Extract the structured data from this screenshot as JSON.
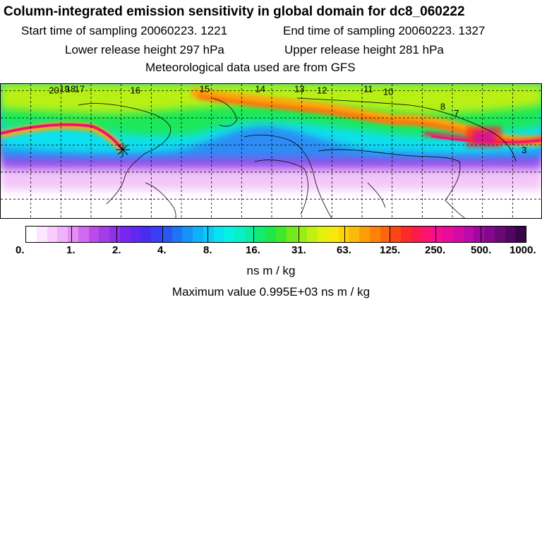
{
  "header": {
    "title": "Column-integrated emission sensitivity in global domain for dc8_060222",
    "start_sampling": "Start time of sampling 20060223.  1221",
    "end_sampling": "End time of sampling 20060223.  1327",
    "lower_release": "Lower release height  297 hPa",
    "upper_release": "Upper release height  281 hPa",
    "met_data": "Meteorological data used are from GFS"
  },
  "colorbar": {
    "labels": [
      "0.",
      "1.",
      "2.",
      "4.",
      "8.",
      "16.",
      "31.",
      "63.",
      "125.",
      "250.",
      "500.",
      "1000."
    ],
    "colors": [
      "#ffffff",
      "#fde6ff",
      "#f8cdfb",
      "#efb1f7",
      "#e28ef2",
      "#d06aee",
      "#bb4be9",
      "#a43de6",
      "#8e32ea",
      "#7828ee",
      "#6128f0",
      "#4a2cf0",
      "#3a3ef2",
      "#2a56f4",
      "#1e74f6",
      "#1592f8",
      "#0fb0fa",
      "#0bcaf6",
      "#0ae0ee",
      "#07f0e4",
      "#07f0c8",
      "#0bee9c",
      "#12ea70",
      "#20e648",
      "#40e82a",
      "#70ea1e",
      "#9aee16",
      "#c2f010",
      "#e2f00c",
      "#f6ea0a",
      "#fcd408",
      "#fcba08",
      "#fc9e08",
      "#fc8208",
      "#fc6410",
      "#fc4616",
      "#fc2a2a",
      "#fc1a4a",
      "#fc1270",
      "#f60e8e",
      "#e80c9c",
      "#d40aa6",
      "#bc0aa8",
      "#a008a0",
      "#84088e",
      "#6a0878",
      "#520664",
      "#3a0448"
    ],
    "units": "ns m / kg",
    "max_value": "Maximum value  0.995E+03 ns m / kg"
  },
  "map": {
    "gridlines": "dashed",
    "trajectory_labels": [
      {
        "text": "20",
        "lon": -148,
        "lat": 78
      },
      {
        "text": "19",
        "lon": -141,
        "lat": 79
      },
      {
        "text": "18",
        "lon": -137,
        "lat": 79
      },
      {
        "text": "17",
        "lon": -131,
        "lat": 79
      },
      {
        "text": "16",
        "lon": -94,
        "lat": 78
      },
      {
        "text": "15",
        "lon": -48,
        "lat": 79
      },
      {
        "text": "14",
        "lon": -11,
        "lat": 79
      },
      {
        "text": "13",
        "lon": 15,
        "lat": 79
      },
      {
        "text": "12",
        "lon": 30,
        "lat": 78
      },
      {
        "text": "11",
        "lon": 61,
        "lat": 79
      },
      {
        "text": "10",
        "lon": 74,
        "lat": 77
      },
      {
        "text": "8",
        "lon": 112,
        "lat": 66
      },
      {
        "text": "7",
        "lon": 121,
        "lat": 61
      },
      {
        "text": "3",
        "lon": 166,
        "lat": 34
      }
    ],
    "receptor_marker": "star-icon"
  }
}
